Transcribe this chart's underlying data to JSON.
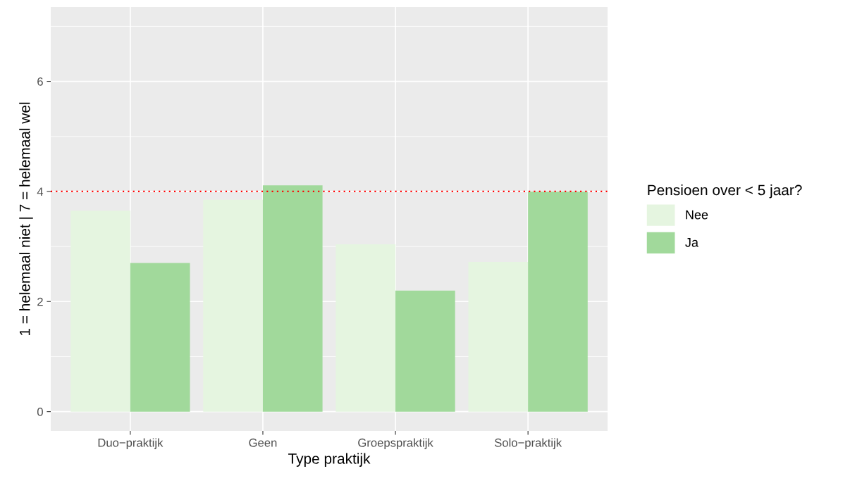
{
  "chart_data": {
    "type": "bar",
    "xlabel": "Type praktijk",
    "ylabel": "1 = helemaal niet | 7 = helemaal wel",
    "legend_title": "Pensioen over < 5 jaar?",
    "categories": [
      "Duo−praktijk",
      "Geen",
      "Groepspraktijk",
      "Solo−praktijk"
    ],
    "series": [
      {
        "name": "Nee",
        "color": "#e5f5e0",
        "values": [
          3.65,
          3.85,
          3.04,
          2.72
        ]
      },
      {
        "name": "Ja",
        "color": "#a1d99b",
        "values": [
          2.7,
          4.11,
          2.2,
          4.0
        ]
      }
    ],
    "ylim": [
      -0.35,
      7.35
    ],
    "yticks": [
      0,
      2,
      4,
      6
    ],
    "grid": true,
    "legend": "right",
    "ref_lines": [
      {
        "axis": "y",
        "value": 4,
        "color": "#ff0000",
        "line_style": "dotted"
      }
    ]
  }
}
